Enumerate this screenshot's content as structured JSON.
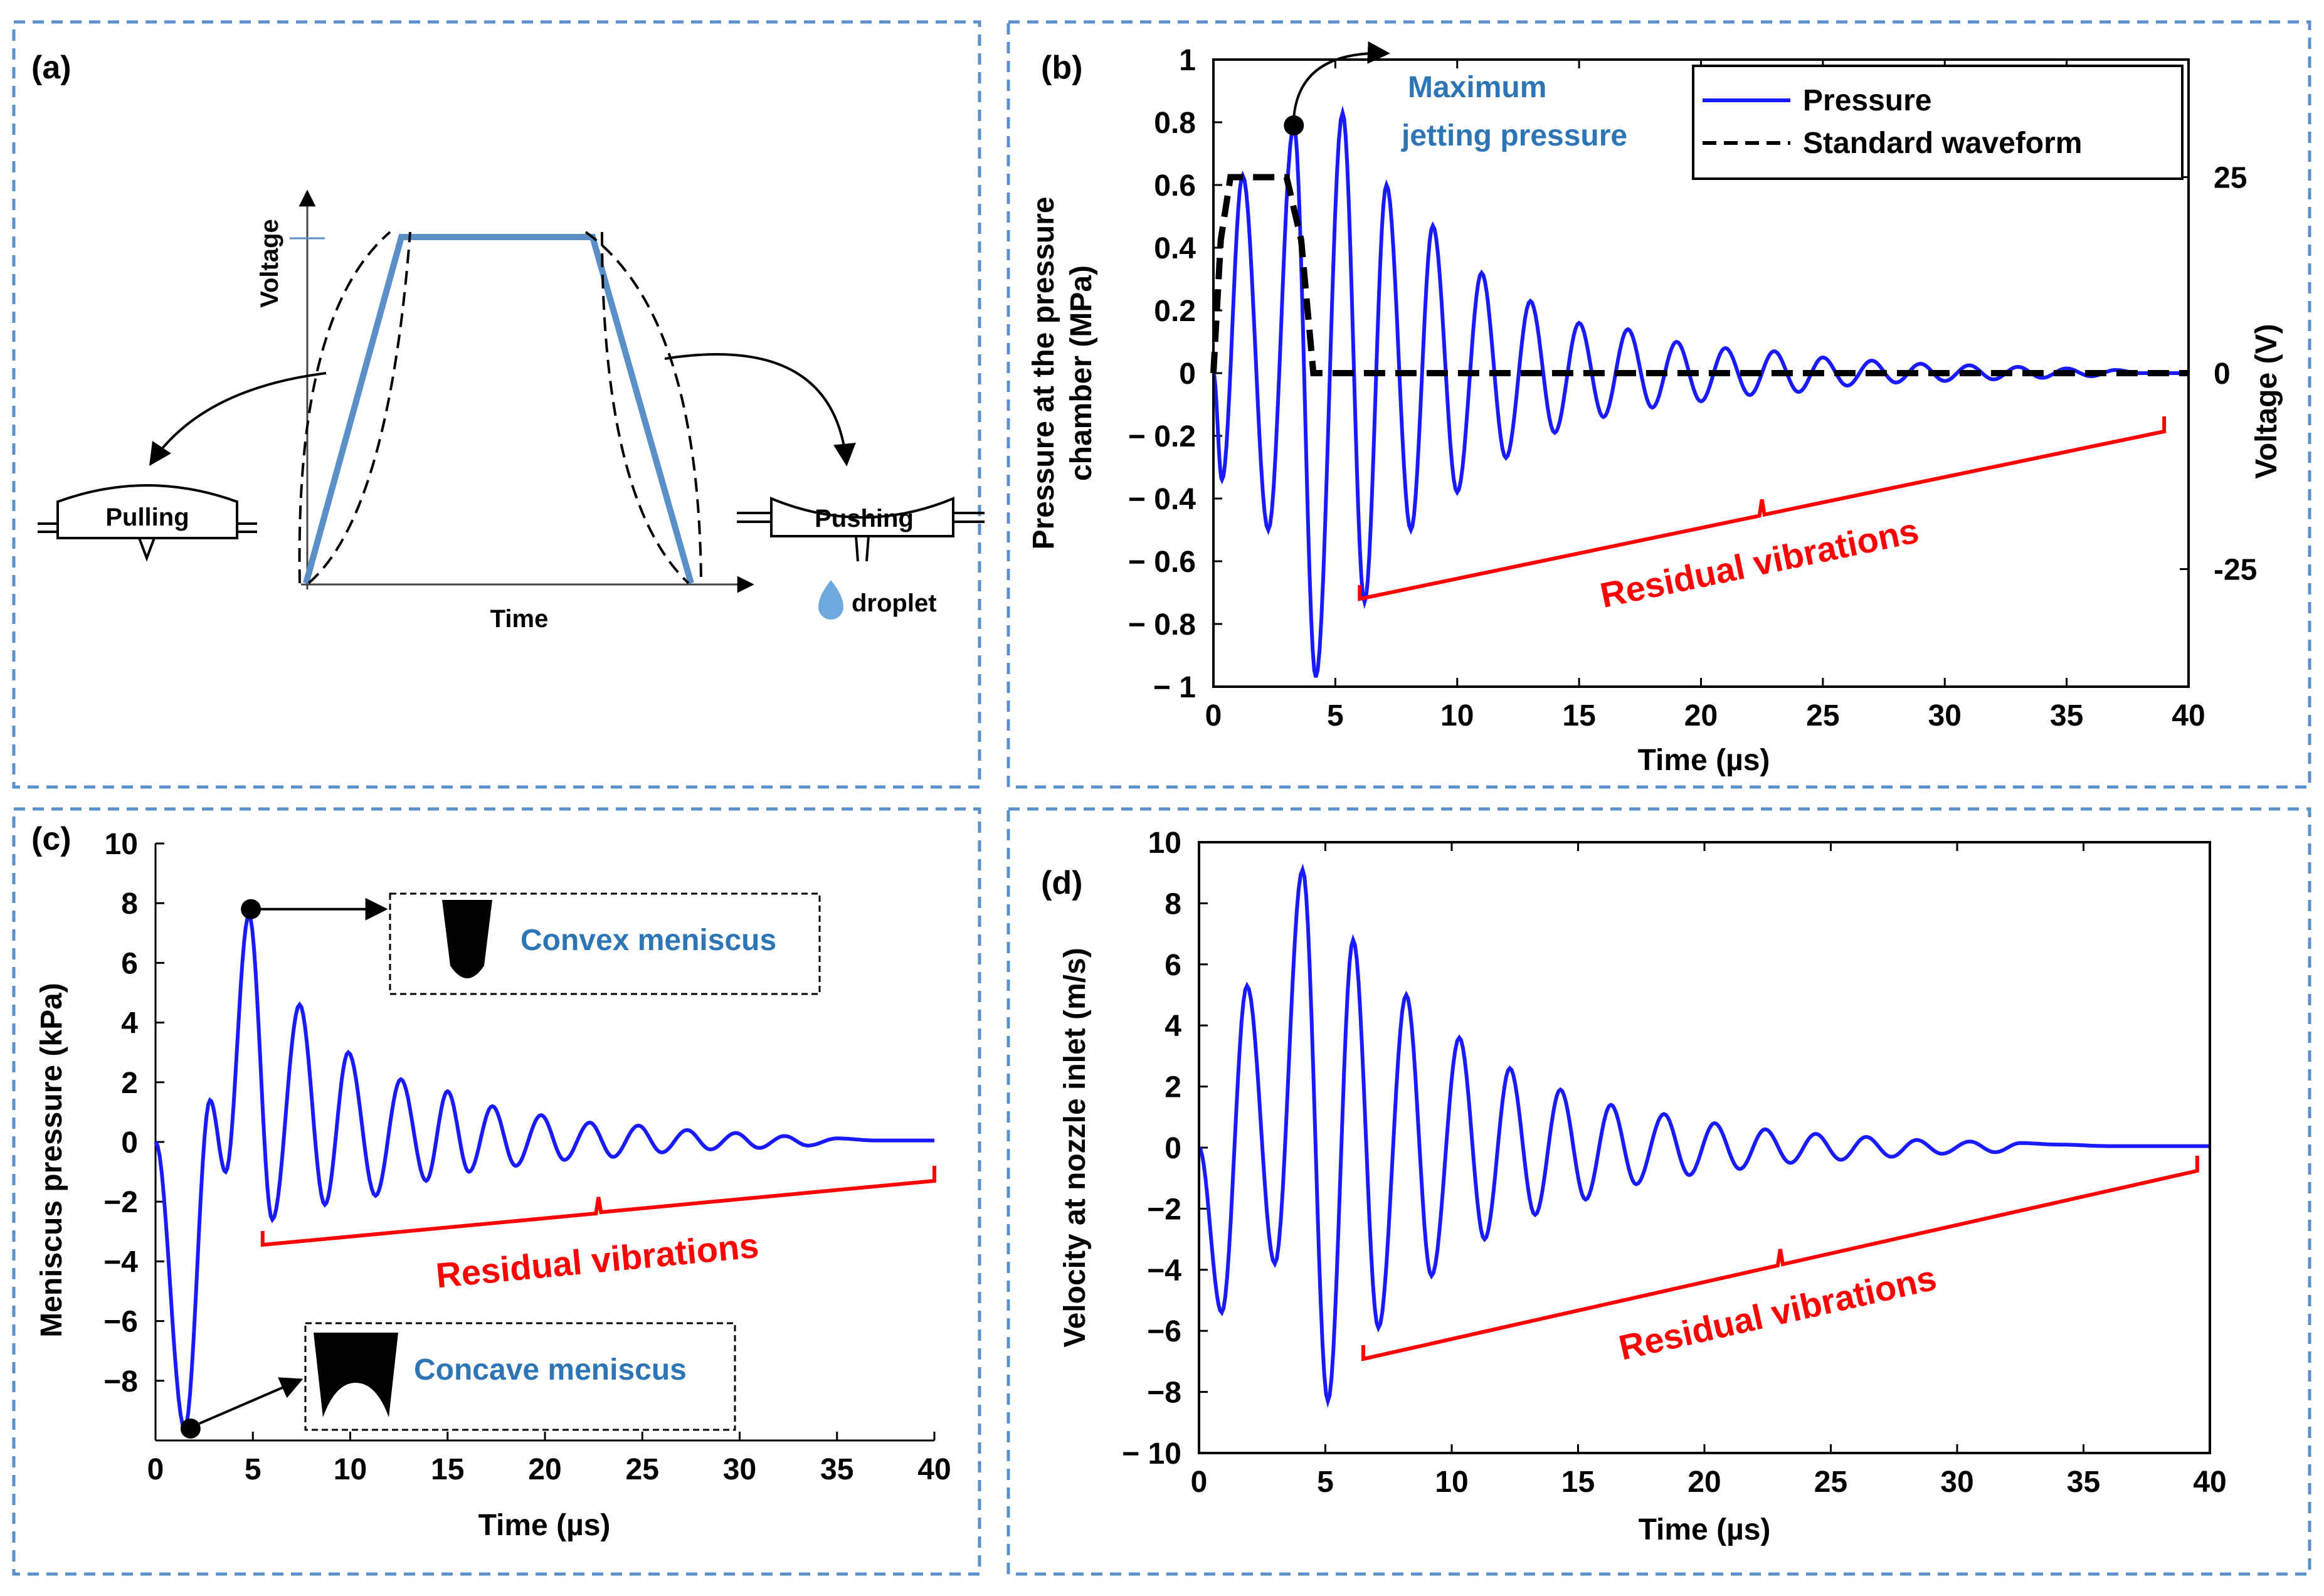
{
  "panels": {
    "a": {
      "label": "(a)",
      "xlabel": "Time",
      "ylabel": "Voltage",
      "pulling_label": "Pulling",
      "pushing_label": "Pushing",
      "droplet_label": "droplet"
    },
    "b": {
      "label": "(b)",
      "annotation": [
        "Maximum",
        "jetting pressure"
      ],
      "residual": "Residual vibrations"
    },
    "c": {
      "label": "(c)",
      "annotation_convex": "Convex meniscus",
      "annotation_concave": "Concave meniscus",
      "residual": "Residual vibrations"
    },
    "d": {
      "label": "(d)",
      "residual": "Residual vibrations"
    }
  },
  "colors": {
    "pressure": "#1a1aff",
    "annotation": "#2e75b6",
    "residual": "#ff0000",
    "waveform_blue": "#5b8fc7",
    "frame": "#5b8fc7"
  },
  "chart_data": [
    {
      "id": "b",
      "type": "line",
      "xlabel": "Time (µs)",
      "ylabel": "Pressure at the pressure chamber (MPa)",
      "ylabel_lines": [
        "Pressure at the pressure",
        "chamber (MPa)"
      ],
      "ylabel_right": "Voltage (V)",
      "xlim": [
        0,
        40
      ],
      "ylim": [
        -1,
        1
      ],
      "ylim_right": [
        -40,
        40
      ],
      "x_ticks": [
        "0",
        "5",
        "10",
        "15",
        "20",
        "25",
        "30",
        "35",
        "40"
      ],
      "y_ticks": [
        "1",
        "0.8",
        "0.6",
        "0.4",
        "0.2",
        "0",
        "− 0.2",
        "− 0.4",
        "− 0.6",
        "− 0.8",
        "− 1"
      ],
      "y_right_ticks": [
        "25",
        "0",
        "-25"
      ],
      "legend": [
        "Pressure",
        "Standard waveform"
      ],
      "legend_position": "top-right",
      "series": [
        {
          "name": "Pressure",
          "x": [
            0,
            0.35,
            1.2,
            2.25,
            3.3,
            4.2,
            5.3,
            6.2,
            7.1,
            8.1,
            9.0,
            10.0,
            11.0,
            12.0,
            13.0,
            14.0,
            15.0,
            16.0,
            17.0,
            18.0,
            19.0,
            20.0,
            21.0,
            22.0,
            23.0,
            24.0,
            25.0,
            26.0,
            27.0,
            28.0,
            29.0,
            30.0,
            31.0,
            32.0,
            33.0,
            34.0,
            35.0,
            36.0,
            37.0,
            38.0,
            40.0
          ],
          "values": [
            0,
            -0.34,
            0.63,
            -0.5,
            0.79,
            -0.97,
            0.83,
            -0.73,
            0.6,
            -0.5,
            0.47,
            -0.38,
            0.32,
            -0.27,
            0.23,
            -0.19,
            0.16,
            -0.14,
            0.14,
            -0.11,
            0.1,
            -0.09,
            0.08,
            -0.07,
            0.07,
            -0.06,
            0.05,
            -0.04,
            0.04,
            -0.03,
            0.03,
            -0.025,
            0.025,
            -0.02,
            0.02,
            -0.015,
            0.015,
            -0.01,
            0.01,
            0,
            0
          ]
        },
        {
          "name": "Standard waveform",
          "axis": "right",
          "x": [
            0,
            0.3,
            0.7,
            3.0,
            3.6,
            4.1,
            40
          ],
          "values": [
            0,
            17,
            25,
            25,
            17,
            0,
            0
          ]
        }
      ],
      "annotations": [
        {
          "text": "Maximum jetting pressure",
          "x": 3.3,
          "y": 0.79
        }
      ],
      "bracket": {
        "text": "Residual vibrations",
        "x_range": [
          6,
          39
        ]
      }
    },
    {
      "id": "c",
      "type": "line",
      "xlabel": "Time (µs)",
      "ylabel": "Meniscus pressure (kPa)",
      "xlim": [
        0,
        40
      ],
      "ylim": [
        -10,
        10
      ],
      "x_ticks": [
        "0",
        "5",
        "10",
        "15",
        "20",
        "25",
        "30",
        "35",
        "40"
      ],
      "y_ticks": [
        "10",
        "8",
        "6",
        "4",
        "2",
        "0",
        "−2",
        "−4",
        "−6",
        "−8"
      ],
      "series": [
        {
          "name": "Meniscus pressure",
          "x": [
            0,
            1.5,
            2.8,
            3.6,
            4.8,
            6.0,
            7.4,
            8.7,
            9.9,
            11.3,
            12.6,
            13.9,
            15.0,
            16.1,
            17.3,
            18.5,
            19.8,
            21.0,
            22.3,
            23.5,
            24.8,
            26.0,
            27.3,
            28.5,
            29.8,
            31.0,
            32.3,
            33.5,
            35.0,
            37.0,
            40.0
          ],
          "values": [
            0,
            -9.6,
            1.4,
            -1.0,
            7.6,
            -2.6,
            4.6,
            -2.1,
            3.0,
            -1.8,
            2.1,
            -1.3,
            1.7,
            -1.0,
            1.2,
            -0.8,
            0.9,
            -0.6,
            0.65,
            -0.5,
            0.55,
            -0.35,
            0.4,
            -0.25,
            0.3,
            -0.2,
            0.2,
            -0.12,
            0.12,
            0.05,
            0.05
          ]
        }
      ],
      "annotations": [
        {
          "text": "Convex meniscus",
          "x": 4.9,
          "y": 7.8
        },
        {
          "text": "Concave meniscus",
          "x": 1.8,
          "y": -9.6
        }
      ],
      "bracket": {
        "text": "Residual vibrations",
        "x_range": [
          5.5,
          40
        ]
      }
    },
    {
      "id": "d",
      "type": "line",
      "xlabel": "Time (µs)",
      "ylabel": "Velocity at nozzle inlet (m/s)",
      "xlim": [
        0,
        40
      ],
      "ylim": [
        -10,
        10
      ],
      "x_ticks": [
        "0",
        "5",
        "10",
        "15",
        "20",
        "25",
        "30",
        "35",
        "40"
      ],
      "y_ticks": [
        "10",
        "8",
        "6",
        "4",
        "2",
        "0",
        "−2",
        "−4",
        "−6",
        "−8",
        "− 10"
      ],
      "series": [
        {
          "name": "Velocity",
          "x": [
            0,
            0.9,
            1.9,
            3.0,
            4.1,
            5.1,
            6.1,
            7.1,
            8.2,
            9.2,
            10.3,
            11.3,
            12.3,
            13.3,
            14.3,
            15.3,
            16.3,
            17.3,
            18.4,
            19.4,
            20.4,
            21.4,
            22.4,
            23.4,
            24.4,
            25.4,
            26.4,
            27.4,
            28.4,
            29.4,
            30.5,
            31.5,
            32.5,
            34.0,
            36.0,
            38.5,
            40.0
          ],
          "values": [
            0,
            -5.4,
            5.3,
            -3.8,
            9.1,
            -8.3,
            6.8,
            -5.9,
            5.0,
            -4.2,
            3.6,
            -3.0,
            2.6,
            -2.2,
            1.9,
            -1.7,
            1.4,
            -1.2,
            1.1,
            -0.9,
            0.8,
            -0.7,
            0.6,
            -0.5,
            0.45,
            -0.4,
            0.35,
            -0.3,
            0.25,
            -0.2,
            0.2,
            -0.15,
            0.15,
            0.1,
            0.05,
            0.05,
            0.05
          ]
        }
      ],
      "bracket": {
        "text": "Residual vibrations",
        "x_range": [
          6.5,
          39.5
        ]
      }
    }
  ]
}
